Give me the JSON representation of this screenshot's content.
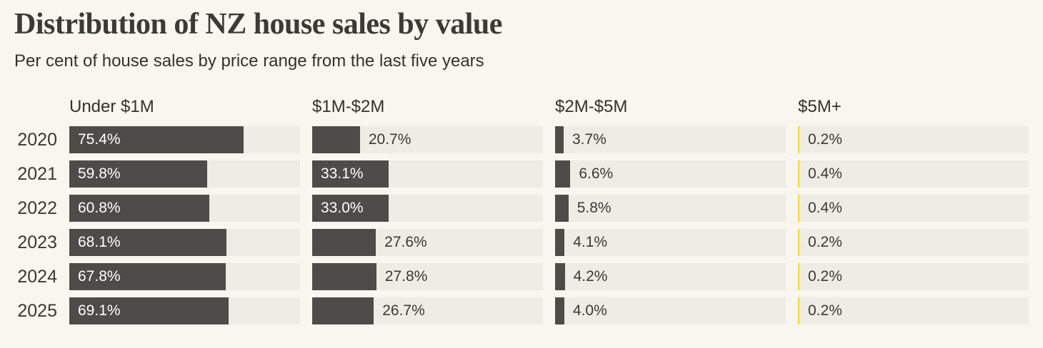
{
  "chart_data": {
    "type": "bar",
    "orientation": "horizontal",
    "title": "Distribution of NZ house sales by value",
    "subtitle": "Per cent of house sales by price range from the last five years",
    "rows": [
      "2020",
      "2021",
      "2022",
      "2023",
      "2024",
      "2025"
    ],
    "series": [
      {
        "name": "Under $1M",
        "color": "#4d4c49",
        "values": [
          75.4,
          59.8,
          60.8,
          68.1,
          67.8,
          69.1
        ]
      },
      {
        "name": "$1M-$2M",
        "color": "#4d4c49",
        "values": [
          20.7,
          33.1,
          33.0,
          27.6,
          27.8,
          26.7
        ]
      },
      {
        "name": "$2M-$5M",
        "color": "#4d4c49",
        "values": [
          3.7,
          6.6,
          5.8,
          4.1,
          4.2,
          4.0
        ]
      },
      {
        "name": "$5M+",
        "color": "#f2d73c",
        "values": [
          0.2,
          0.4,
          0.4,
          0.2,
          0.2,
          0.2
        ]
      }
    ],
    "xlim": [
      0,
      100
    ],
    "value_suffix": "%",
    "grid": "off",
    "legend": "column-headers"
  },
  "colors": {
    "background": "#f8f6ef",
    "track": "#edece5",
    "bar_dark": "#4d4c49",
    "bar_yellow": "#f2d73c",
    "text_dark": "#33322e",
    "label_on_bar": "#ffffff"
  }
}
